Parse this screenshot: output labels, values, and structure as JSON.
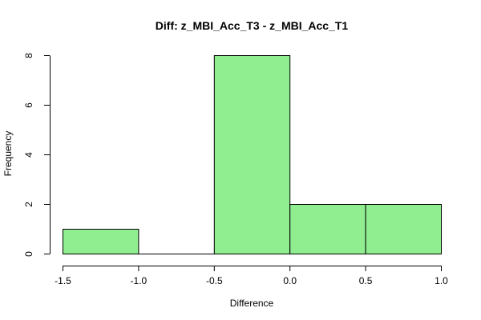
{
  "chart_data": {
    "type": "bar",
    "title": "Diff: z_MBI_Acc_T3 - z_MBI_Acc_T1",
    "xlabel": "Difference",
    "ylabel": "Frequency",
    "bins": [
      {
        "start": -1.5,
        "end": -1.0,
        "value": 1
      },
      {
        "start": -1.0,
        "end": -0.5,
        "value": 0
      },
      {
        "start": -0.5,
        "end": 0.0,
        "value": 8
      },
      {
        "start": 0.0,
        "end": 0.5,
        "value": 2
      },
      {
        "start": 0.5,
        "end": 1.0,
        "value": 2
      }
    ],
    "xlim": [
      -1.5,
      1.0
    ],
    "ylim": [
      0,
      8
    ],
    "x_ticks": [
      -1.5,
      -1.0,
      -0.5,
      0.0,
      0.5,
      1.0
    ],
    "x_tick_labels": [
      "-1.5",
      "-1.0",
      "-0.5",
      "0.0",
      "0.5",
      "1.0"
    ],
    "y_ticks": [
      0,
      2,
      4,
      6,
      8
    ],
    "y_tick_labels": [
      "0",
      "2",
      "4",
      "6",
      "8"
    ],
    "bar_color": "#90ee90",
    "grid": false
  }
}
